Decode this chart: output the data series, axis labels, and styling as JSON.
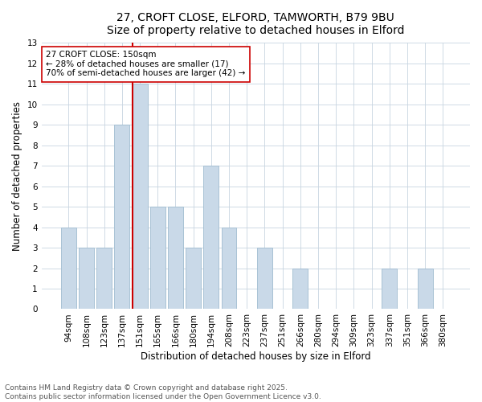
{
  "title_line1": "27, CROFT CLOSE, ELFORD, TAMWORTH, B79 9BU",
  "title_line2": "Size of property relative to detached houses in Elford",
  "xlabel": "Distribution of detached houses by size in Elford",
  "ylabel": "Number of detached properties",
  "categories": [
    "94sqm",
    "108sqm",
    "123sqm",
    "137sqm",
    "151sqm",
    "165sqm",
    "166sqm",
    "180sqm",
    "194sqm",
    "208sqm",
    "223sqm",
    "237sqm",
    "251sqm",
    "266sqm",
    "280sqm",
    "294sqm",
    "309sqm",
    "323sqm",
    "337sqm",
    "351sqm",
    "366sqm",
    "380sqm"
  ],
  "values": [
    4,
    3,
    3,
    9,
    11,
    5,
    5,
    3,
    7,
    4,
    0,
    3,
    0,
    2,
    0,
    0,
    0,
    0,
    2,
    0,
    2,
    0
  ],
  "bar_color": "#c9d9e8",
  "bar_edge_color": "#a0bcd0",
  "highlight_line_index": 4,
  "highlight_line_color": "#cc0000",
  "annotation_text": "27 CROFT CLOSE: 150sqm\n← 28% of detached houses are smaller (17)\n70% of semi-detached houses are larger (42) →",
  "annotation_box_color": "#ffffff",
  "annotation_box_edge": "#cc0000",
  "ylim": [
    0,
    13
  ],
  "yticks": [
    0,
    1,
    2,
    3,
    4,
    5,
    6,
    7,
    8,
    9,
    10,
    11,
    12,
    13
  ],
  "footer_text": "Contains HM Land Registry data © Crown copyright and database right 2025.\nContains public sector information licensed under the Open Government Licence v3.0.",
  "bg_color": "#ffffff",
  "grid_color": "#c8d4e0",
  "title_fontsize": 10,
  "subtitle_fontsize": 9.5,
  "axis_label_fontsize": 8.5,
  "tick_fontsize": 7.5,
  "annotation_fontsize": 7.5,
  "footer_fontsize": 6.5
}
